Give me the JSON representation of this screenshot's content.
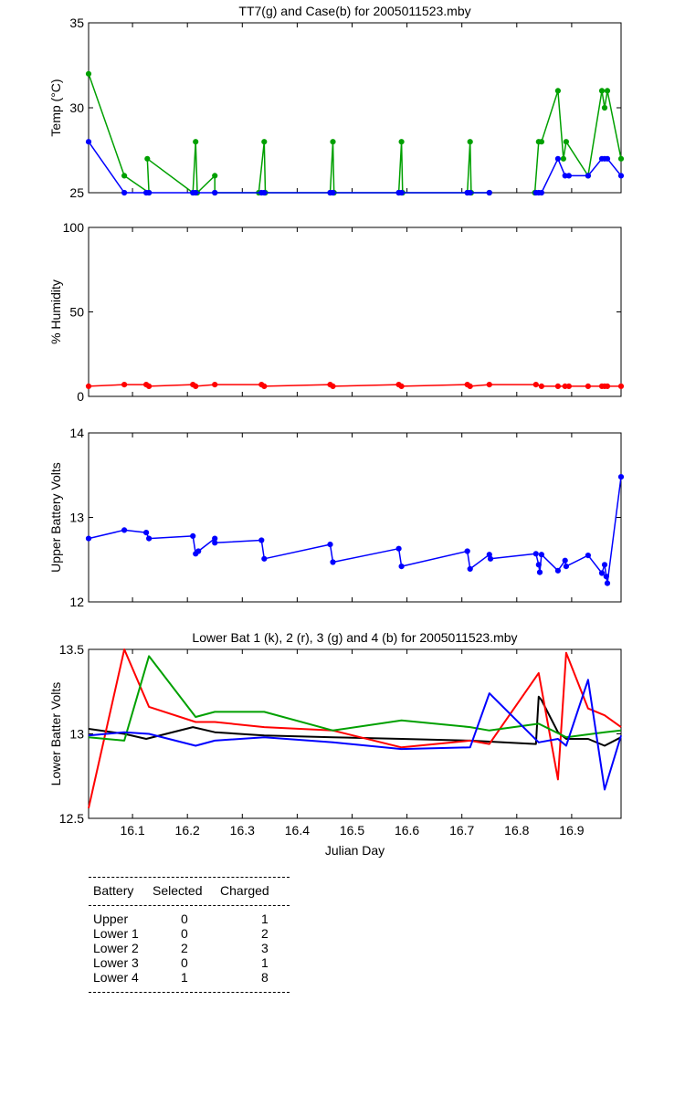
{
  "panels": [
    {
      "id": "temp",
      "title": "TT7(g) and Case(b) for 2005011523.mby",
      "ylabel": "Temp  (°C)",
      "ylim": [
        25,
        35
      ],
      "yticks": [
        "25",
        "30",
        "35"
      ]
    },
    {
      "id": "humidity",
      "title": "",
      "ylabel": "% Humidity",
      "ylim": [
        0,
        100
      ],
      "yticks": [
        "0",
        "50",
        "100"
      ]
    },
    {
      "id": "upper",
      "title": "",
      "ylabel": "Upper Battery Volts",
      "ylim": [
        12,
        14
      ],
      "yticks": [
        "12",
        "13",
        "14"
      ]
    },
    {
      "id": "lower",
      "title": "Lower Bat 1 (k), 2 (r), 3 (g) and 4 (b) for 2005011523.mby",
      "ylabel": "Lower Batter Volts",
      "ylim": [
        12.5,
        13.5
      ],
      "yticks": [
        "12.5",
        "13",
        "13.5"
      ],
      "xlabel": "Julian Day",
      "xticks": [
        "16.1",
        "16.2",
        "16.3",
        "16.4",
        "16.5",
        "16.6",
        "16.7",
        "16.8",
        "16.9"
      ]
    }
  ],
  "chart_data": [
    {
      "type": "line",
      "title": "TT7(g) and Case(b) for 2005011523.mby",
      "xlabel": "",
      "ylabel": "Temp  (°C)",
      "xlim": [
        16.02,
        16.99
      ],
      "ylim": [
        25,
        35
      ],
      "grid": false,
      "series": [
        {
          "color": "#00a000",
          "markers": true,
          "points": [
            [
              16.02,
              32
            ],
            [
              16.085,
              26
            ],
            [
              16.13,
              25
            ],
            [
              16.127,
              27
            ],
            [
              16.21,
              25
            ],
            [
              16.215,
              28
            ],
            [
              16.218,
              25
            ],
            [
              16.25,
              26
            ],
            [
              16.25,
              25
            ],
            [
              16.33,
              25
            ],
            [
              16.34,
              28
            ],
            [
              16.342,
              25
            ],
            [
              16.46,
              25
            ],
            [
              16.465,
              28
            ],
            [
              16.467,
              25
            ],
            [
              16.585,
              25
            ],
            [
              16.59,
              28
            ],
            [
              16.592,
              25
            ],
            [
              16.71,
              25
            ],
            [
              16.715,
              28
            ],
            [
              16.717,
              25
            ],
            [
              16.75,
              25
            ]
          ]
        },
        {
          "color": "#00a000",
          "markers": true,
          "points": [
            [
              16.833,
              25
            ],
            [
              16.84,
              28
            ],
            [
              16.845,
              28
            ],
            [
              16.875,
              31
            ],
            [
              16.885,
              27
            ],
            [
              16.89,
              28
            ],
            [
              16.93,
              26
            ],
            [
              16.955,
              31
            ],
            [
              16.96,
              30
            ],
            [
              16.965,
              31
            ],
            [
              16.99,
              27
            ]
          ]
        },
        {
          "color": "#0000ff",
          "markers": true,
          "points": [
            [
              16.02,
              28
            ],
            [
              16.085,
              25
            ],
            [
              16.125,
              25
            ],
            [
              16.13,
              25
            ],
            [
              16.21,
              25
            ],
            [
              16.215,
              25
            ],
            [
              16.25,
              25
            ],
            [
              16.335,
              25
            ],
            [
              16.34,
              25
            ],
            [
              16.46,
              25
            ],
            [
              16.465,
              25
            ],
            [
              16.585,
              25
            ],
            [
              16.59,
              25
            ],
            [
              16.71,
              25
            ],
            [
              16.715,
              25
            ],
            [
              16.75,
              25
            ]
          ]
        },
        {
          "color": "#0000ff",
          "markers": true,
          "points": [
            [
              16.835,
              25
            ],
            [
              16.84,
              25
            ],
            [
              16.845,
              25
            ],
            [
              16.875,
              27
            ],
            [
              16.888,
              26
            ],
            [
              16.895,
              26
            ],
            [
              16.93,
              26
            ],
            [
              16.955,
              27
            ],
            [
              16.96,
              27
            ],
            [
              16.965,
              27
            ],
            [
              16.99,
              26
            ]
          ]
        }
      ]
    },
    {
      "type": "line",
      "title": "",
      "xlabel": "",
      "ylabel": "% Humidity",
      "xlim": [
        16.02,
        16.99
      ],
      "ylim": [
        0,
        100
      ],
      "grid": false,
      "series": [
        {
          "color": "#ff0000",
          "markers": true,
          "points": [
            [
              16.02,
              6
            ],
            [
              16.085,
              7
            ],
            [
              16.125,
              7
            ],
            [
              16.13,
              6
            ],
            [
              16.21,
              7
            ],
            [
              16.215,
              6
            ],
            [
              16.25,
              7
            ],
            [
              16.335,
              7
            ],
            [
              16.34,
              6
            ],
            [
              16.46,
              7
            ],
            [
              16.465,
              6
            ],
            [
              16.585,
              7
            ],
            [
              16.59,
              6
            ],
            [
              16.71,
              7
            ],
            [
              16.715,
              6
            ],
            [
              16.75,
              7
            ],
            [
              16.835,
              7
            ],
            [
              16.845,
              6
            ],
            [
              16.875,
              6
            ],
            [
              16.888,
              6
            ],
            [
              16.895,
              6
            ],
            [
              16.93,
              6
            ],
            [
              16.955,
              6
            ],
            [
              16.96,
              6
            ],
            [
              16.965,
              6
            ],
            [
              16.99,
              6
            ]
          ]
        }
      ]
    },
    {
      "type": "line",
      "title": "",
      "xlabel": "",
      "ylabel": "Upper Battery Volts",
      "xlim": [
        16.02,
        16.99
      ],
      "ylim": [
        12,
        14
      ],
      "grid": false,
      "series": [
        {
          "color": "#0000ff",
          "markers": true,
          "points": [
            [
              16.02,
              12.75
            ],
            [
              16.085,
              12.85
            ],
            [
              16.125,
              12.82
            ],
            [
              16.13,
              12.75
            ],
            [
              16.21,
              12.78
            ],
            [
              16.215,
              12.57
            ],
            [
              16.22,
              12.6
            ],
            [
              16.25,
              12.75
            ],
            [
              16.25,
              12.7
            ],
            [
              16.335,
              12.73
            ],
            [
              16.34,
              12.51
            ],
            [
              16.46,
              12.68
            ],
            [
              16.465,
              12.47
            ],
            [
              16.585,
              12.63
            ],
            [
              16.59,
              12.42
            ],
            [
              16.71,
              12.6
            ],
            [
              16.715,
              12.39
            ],
            [
              16.75,
              12.56
            ],
            [
              16.752,
              12.51
            ],
            [
              16.835,
              12.57
            ],
            [
              16.84,
              12.44
            ],
            [
              16.842,
              12.35
            ],
            [
              16.845,
              12.56
            ],
            [
              16.875,
              12.37
            ],
            [
              16.888,
              12.49
            ],
            [
              16.89,
              12.42
            ],
            [
              16.93,
              12.55
            ],
            [
              16.955,
              12.34
            ],
            [
              16.96,
              12.44
            ],
            [
              16.963,
              12.3
            ],
            [
              16.965,
              12.22
            ],
            [
              16.99,
              13.48
            ]
          ]
        }
      ]
    },
    {
      "type": "line",
      "title": "Lower Bat 1 (k), 2 (r), 3 (g) and 4 (b) for 2005011523.mby",
      "xlabel": "Julian Day",
      "ylabel": "Lower Batter Volts",
      "xlim": [
        16.02,
        16.99
      ],
      "ylim": [
        12.5,
        13.5
      ],
      "grid": false,
      "series": [
        {
          "color": "#000000",
          "markers": false,
          "points": [
            [
              16.02,
              13.03
            ],
            [
              16.085,
              13.0
            ],
            [
              16.125,
              12.97
            ],
            [
              16.21,
              13.04
            ],
            [
              16.25,
              13.01
            ],
            [
              16.34,
              12.99
            ],
            [
              16.465,
              12.98
            ],
            [
              16.59,
              12.97
            ],
            [
              16.715,
              12.96
            ],
            [
              16.835,
              12.94
            ],
            [
              16.84,
              13.22
            ],
            [
              16.845,
              13.2
            ],
            [
              16.875,
              13.01
            ],
            [
              16.89,
              12.97
            ],
            [
              16.93,
              12.97
            ],
            [
              16.96,
              12.93
            ],
            [
              16.99,
              12.98
            ]
          ]
        },
        {
          "color": "#ff0000",
          "markers": false,
          "points": [
            [
              16.02,
              12.56
            ],
            [
              16.085,
              13.5
            ],
            [
              16.13,
              13.16
            ],
            [
              16.215,
              13.07
            ],
            [
              16.25,
              13.07
            ],
            [
              16.34,
              13.04
            ],
            [
              16.465,
              13.02
            ],
            [
              16.59,
              12.92
            ],
            [
              16.715,
              12.96
            ],
            [
              16.75,
              12.94
            ],
            [
              16.84,
              13.36
            ],
            [
              16.875,
              12.73
            ],
            [
              16.89,
              13.48
            ],
            [
              16.93,
              13.15
            ],
            [
              16.96,
              13.11
            ],
            [
              16.99,
              13.04
            ]
          ]
        },
        {
          "color": "#00a000",
          "markers": false,
          "points": [
            [
              16.02,
              12.98
            ],
            [
              16.085,
              12.96
            ],
            [
              16.13,
              13.46
            ],
            [
              16.215,
              13.1
            ],
            [
              16.25,
              13.13
            ],
            [
              16.34,
              13.13
            ],
            [
              16.465,
              13.02
            ],
            [
              16.59,
              13.08
            ],
            [
              16.715,
              13.04
            ],
            [
              16.75,
              13.02
            ],
            [
              16.84,
              13.06
            ],
            [
              16.89,
              12.98
            ],
            [
              16.96,
              13.01
            ],
            [
              16.99,
              13.02
            ]
          ]
        },
        {
          "color": "#0000ff",
          "markers": false,
          "points": [
            [
              16.02,
              12.99
            ],
            [
              16.085,
              13.01
            ],
            [
              16.13,
              13.0
            ],
            [
              16.215,
              12.93
            ],
            [
              16.25,
              12.96
            ],
            [
              16.34,
              12.98
            ],
            [
              16.465,
              12.95
            ],
            [
              16.59,
              12.91
            ],
            [
              16.715,
              12.92
            ],
            [
              16.75,
              13.24
            ],
            [
              16.84,
              12.95
            ],
            [
              16.875,
              12.97
            ],
            [
              16.89,
              12.93
            ],
            [
              16.93,
              13.32
            ],
            [
              16.96,
              12.67
            ],
            [
              16.99,
              12.99
            ]
          ]
        }
      ]
    }
  ],
  "table": {
    "headers": [
      "Battery",
      "Selected",
      "Charged"
    ],
    "rows": [
      [
        "Upper",
        "0",
        "1"
      ],
      [
        "Lower 1",
        "0",
        "2"
      ],
      [
        "Lower 2",
        "2",
        "3"
      ],
      [
        "Lower 3",
        "0",
        "1"
      ],
      [
        "Lower 4",
        "1",
        "8"
      ]
    ]
  }
}
